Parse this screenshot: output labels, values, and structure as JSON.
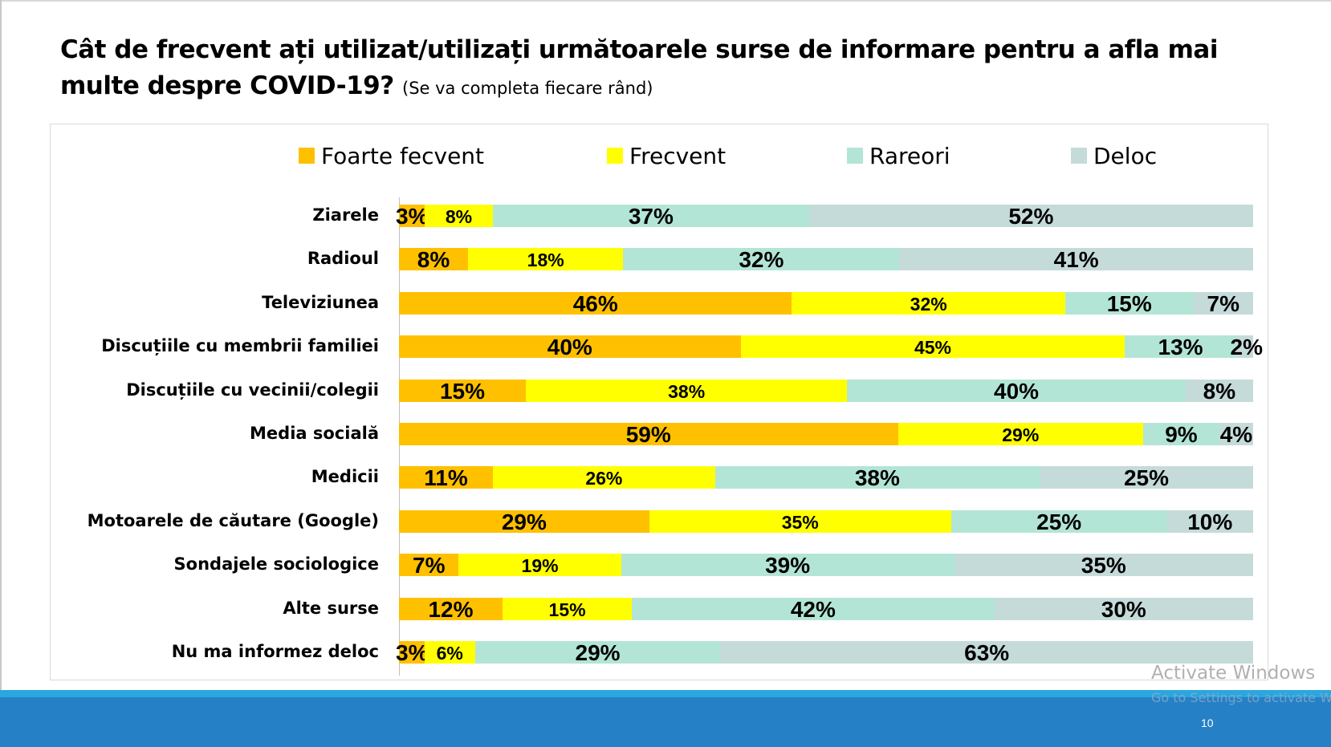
{
  "slide": {
    "title_main": "Cât de frecvent ați utilizat/utilizați următoarele surse de informare pentru a afla mai multe despre COVID-19?",
    "title_sub": "(Se va completa fiecare rând)",
    "page_number": "10",
    "watermark_line1": "Activate Windows",
    "watermark_line2": "Go to Settings to activate W"
  },
  "colors": {
    "Foarte fecvent": "#ffc000",
    "Frecvent": "#ffff00",
    "Rareori": "#b3e5d6",
    "Deloc": "#c5dbd9"
  },
  "chart_data": {
    "type": "bar",
    "orientation": "horizontal",
    "stacked": true,
    "legend_position": "top",
    "categories": [
      "Ziarele",
      "Radioul",
      "Televiziunea",
      "Discuțiile cu membrii familiei",
      "Discuțiile cu vecinii/colegii",
      "Media socială",
      "Medicii",
      "Motoarele de căutare (Google)",
      "Sondajele sociologice",
      "Alte surse",
      "Nu ma informez deloc"
    ],
    "series": [
      {
        "name": "Foarte fecvent",
        "values": [
          3,
          8,
          46,
          40,
          15,
          59,
          11,
          29,
          7,
          12,
          3
        ],
        "labels": [
          "3%",
          "8%",
          "46%",
          "40%",
          "15%",
          "59%",
          "11%",
          "29%",
          "7%",
          "12%",
          "3%"
        ]
      },
      {
        "name": "Frecvent",
        "values": [
          8,
          18,
          32,
          45,
          38,
          29,
          26,
          35,
          19,
          15,
          6
        ],
        "labels": [
          "8%",
          "18%",
          "32%",
          "45%",
          "38%",
          "29%",
          "26%",
          "35%",
          "19%",
          "15%",
          "6%"
        ]
      },
      {
        "name": "Rareori",
        "values": [
          37,
          32,
          15,
          13,
          40,
          9,
          38,
          25,
          39,
          42,
          29
        ],
        "labels": [
          "37%",
          "32%",
          "15%",
          "13%",
          "40%",
          "9%",
          "38%",
          "25%",
          "39%",
          "42%",
          "29%"
        ]
      },
      {
        "name": "Deloc",
        "values": [
          52,
          41,
          7,
          2,
          8,
          4,
          25,
          10,
          35,
          30,
          63
        ],
        "labels": [
          "52%",
          "41%",
          "7%",
          "2%",
          "8%",
          "4%",
          "25%",
          "10%",
          "35%",
          "30%",
          "63%"
        ]
      }
    ]
  }
}
